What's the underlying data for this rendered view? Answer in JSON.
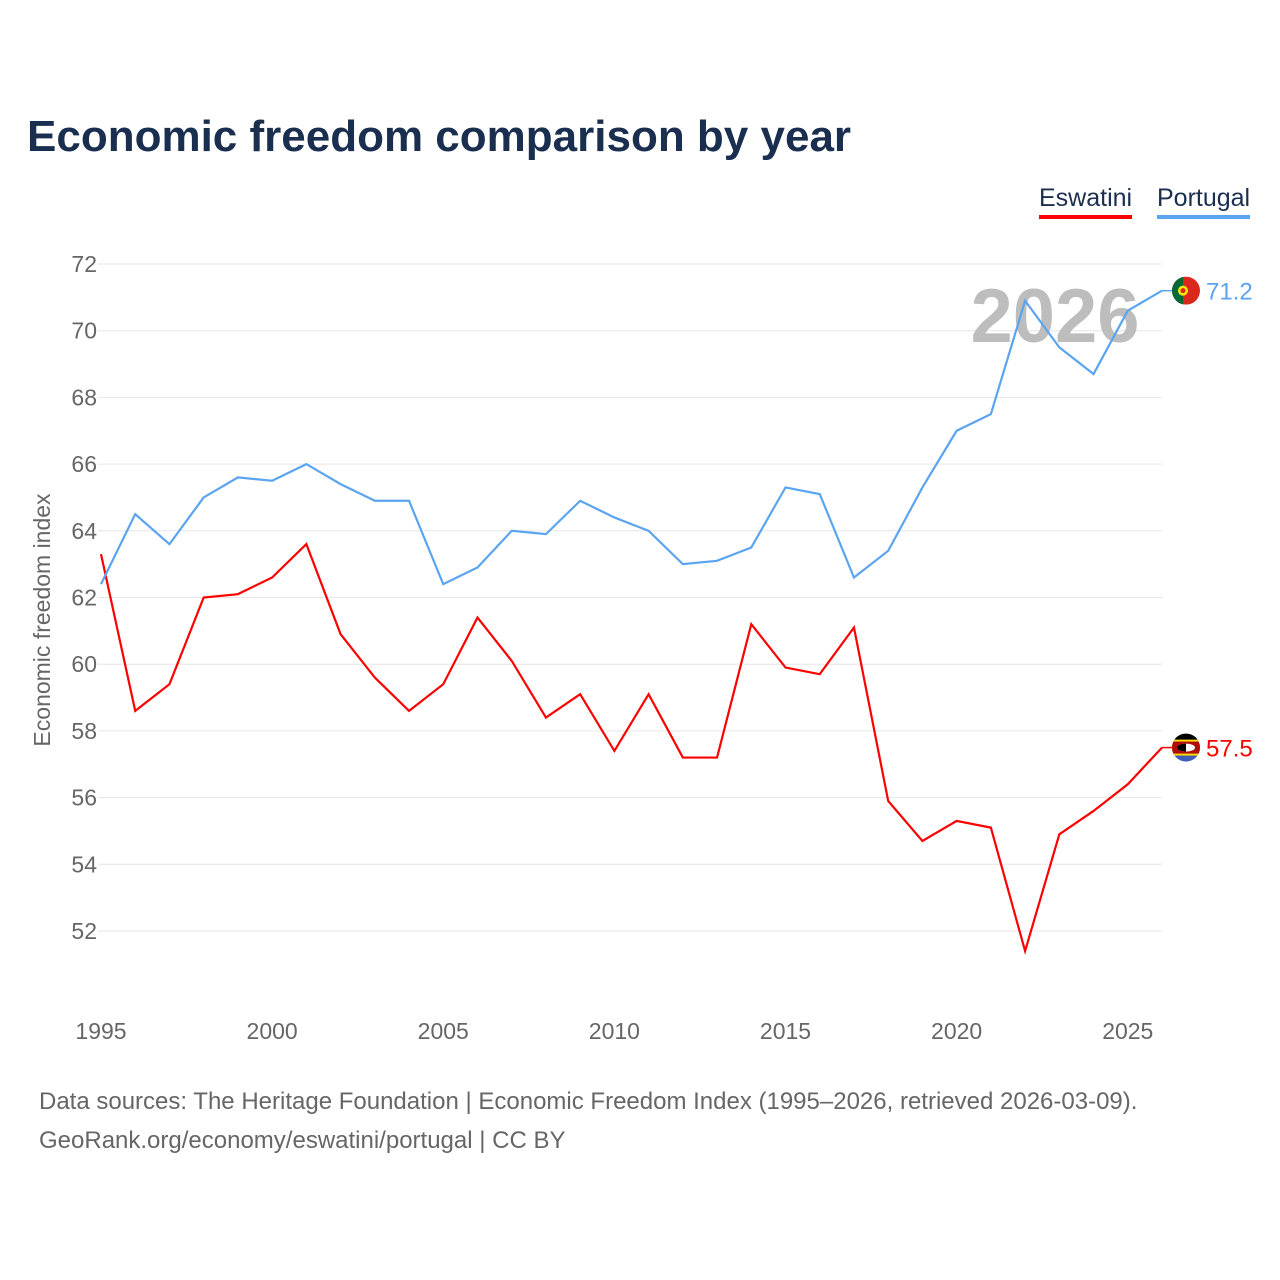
{
  "chart_data": {
    "type": "line",
    "title": "Economic freedom comparison by year",
    "xlabel": "",
    "ylabel": "Economic freedom index",
    "xlim": [
      1995,
      2026
    ],
    "ylim": [
      50,
      72
    ],
    "grid": true,
    "legend_placement": "top-right",
    "x_ticks": [
      1995,
      2000,
      2005,
      2010,
      2015,
      2020,
      2025
    ],
    "y_ticks": [
      52,
      54,
      56,
      58,
      60,
      62,
      64,
      66,
      68,
      70,
      72
    ],
    "x": [
      1995,
      1996,
      1997,
      1998,
      1999,
      2000,
      2001,
      2002,
      2003,
      2004,
      2005,
      2006,
      2007,
      2008,
      2009,
      2010,
      2011,
      2012,
      2013,
      2014,
      2015,
      2016,
      2017,
      2018,
      2019,
      2020,
      2021,
      2022,
      2023,
      2024,
      2025,
      2026
    ],
    "series": [
      {
        "name": "Eswatini",
        "color": "#ff0000",
        "end_label": "57.5",
        "values": [
          63.3,
          58.6,
          59.4,
          62.0,
          62.1,
          62.6,
          63.6,
          60.9,
          59.6,
          58.6,
          59.4,
          61.4,
          60.1,
          58.4,
          59.1,
          57.4,
          59.1,
          57.2,
          57.2,
          61.2,
          59.9,
          59.7,
          61.1,
          55.9,
          54.7,
          55.3,
          55.1,
          51.4,
          54.9,
          55.6,
          56.4,
          57.5
        ]
      },
      {
        "name": "Portugal",
        "color": "#5ba4f0",
        "end_label": "71.2",
        "values": [
          62.4,
          64.5,
          63.6,
          65.0,
          65.6,
          65.5,
          66.0,
          65.4,
          64.9,
          64.9,
          62.4,
          62.9,
          64.0,
          63.9,
          64.9,
          64.4,
          64.0,
          63.0,
          63.1,
          63.5,
          65.3,
          65.1,
          62.6,
          63.4,
          65.3,
          67.0,
          67.5,
          70.9,
          69.5,
          68.7,
          70.6,
          71.2
        ]
      }
    ],
    "year_watermark": "2026"
  },
  "footer": {
    "line1": "Data sources: The Heritage Foundation | Economic Freedom Index (1995–2026, retrieved 2026-03-09).",
    "line2": "GeoRank.org/economy/eswatini/portugal | CC BY"
  }
}
